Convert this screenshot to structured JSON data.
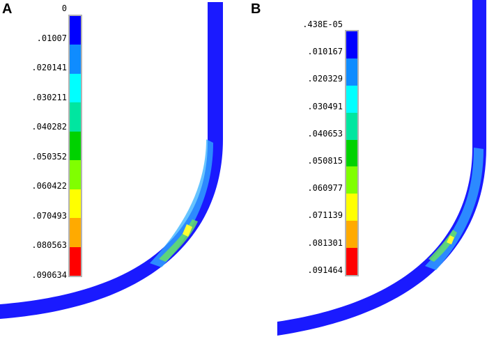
{
  "panels": [
    {
      "label": "A",
      "legend": {
        "ticks": [
          "0",
          ".01007",
          ".020141",
          ".030211",
          ".040282",
          ".050352",
          ".060422",
          ".070493",
          ".080563",
          ".090634"
        ],
        "colors": [
          "#0000ff",
          "#0f8cff",
          "#00ffff",
          "#00e6a0",
          "#00d200",
          "#80ff00",
          "#ffff00",
          "#ffaa00",
          "#ff0000"
        ]
      }
    },
    {
      "label": "B",
      "legend": {
        "ticks": [
          ".438E-05",
          ".010167",
          ".020329",
          ".030491",
          ".040653",
          ".050815",
          ".060977",
          ".071139",
          ".081301",
          ".091464"
        ],
        "colors": [
          "#0000ff",
          "#0f8cff",
          "#00ffff",
          "#00e6a0",
          "#00d200",
          "#80ff00",
          "#ffff00",
          "#ffaa00",
          "#ff0000"
        ]
      }
    }
  ],
  "colors": {
    "geometry": "#1a1aff",
    "highlight_light": "#33b0ff",
    "highlight_cyan": "#4dd2ff",
    "highlight_green": "#66e066",
    "highlight_yellow": "#ffff33"
  }
}
